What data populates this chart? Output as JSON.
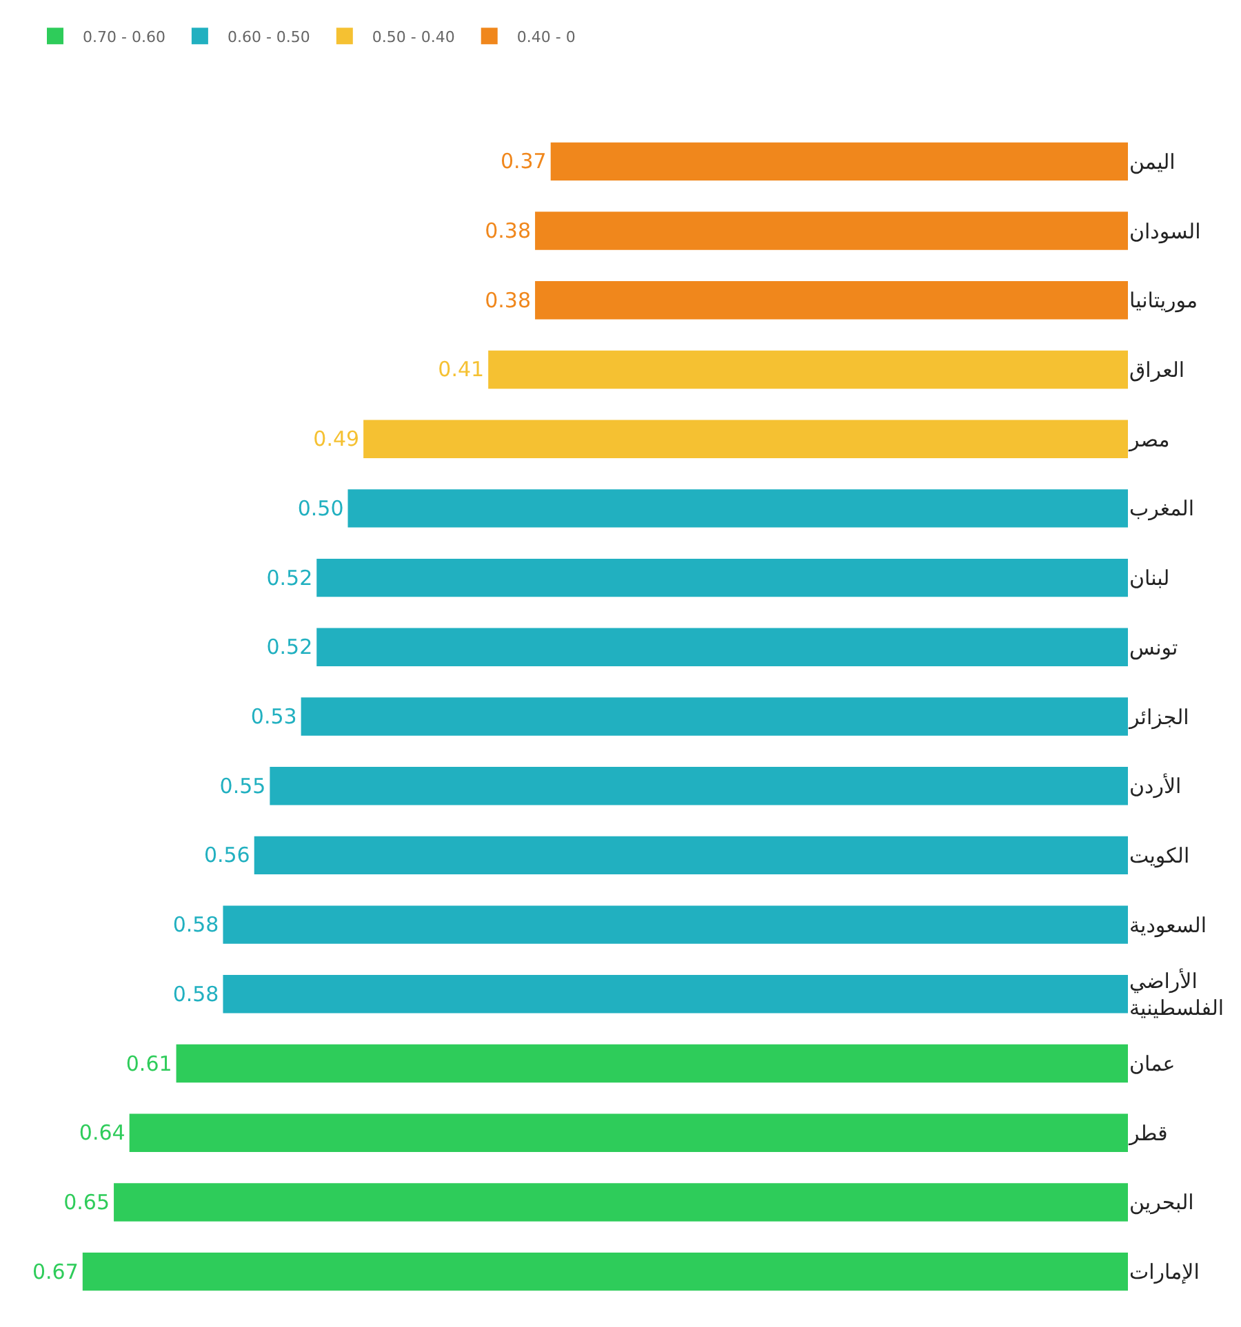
{
  "chart_data": {
    "type": "bar",
    "orientation": "horizontal",
    "stacked": true,
    "legend": "top left",
    "tick_labels": "y",
    "categories": [
      "اليمن",
      "السودان",
      "موريتانيا",
      "العراق",
      "مصر",
      "المغرب",
      "لبنان",
      "تونس",
      "الجزائر",
      "الأردن",
      "الكويت",
      "السعودية",
      "الأراضي الفلسطينية",
      "عمان",
      "قطر",
      "البحرين",
      "الإمارات"
    ],
    "series": [
      {
        "name": "0.70 - 0.60",
        "color": "#2ecc5a",
        "values": [
          null,
          null,
          null,
          null,
          null,
          null,
          null,
          null,
          null,
          null,
          null,
          null,
          null,
          0.61,
          0.64,
          0.65,
          0.67
        ],
        "value_labels": [
          null,
          null,
          null,
          null,
          null,
          null,
          null,
          null,
          null,
          null,
          null,
          null,
          null,
          "0.61",
          "0.64",
          "0.65",
          "0.67"
        ]
      },
      {
        "name": "0.60 - 0.50",
        "color": "#21b0c0",
        "values": [
          null,
          null,
          null,
          null,
          null,
          0.5,
          0.52,
          0.52,
          0.53,
          0.55,
          0.56,
          0.58,
          0.58,
          null,
          null,
          null,
          null
        ],
        "value_labels": [
          null,
          null,
          null,
          null,
          null,
          "0.50",
          "0.52",
          "0.52",
          "0.53",
          "0.55",
          "0.56",
          "0.58",
          "0.58",
          null,
          null,
          null,
          null
        ]
      },
      {
        "name": "0.50 - 0.40",
        "color": "#f5c132",
        "values": [
          null,
          null,
          null,
          0.41,
          0.49,
          null,
          null,
          null,
          null,
          null,
          null,
          null,
          null,
          null,
          null,
          null,
          null
        ],
        "value_labels": [
          null,
          null,
          null,
          "0.41",
          "0.49",
          null,
          null,
          null,
          null,
          null,
          null,
          null,
          null,
          null,
          null,
          null,
          null
        ]
      },
      {
        "name": "0.40 - 0",
        "color": "#f0871c",
        "values": [
          0.37,
          0.38,
          0.38,
          null,
          null,
          null,
          null,
          null,
          null,
          null,
          null,
          null,
          null,
          null,
          null,
          null,
          null
        ],
        "value_labels": [
          "0.37",
          "0.38",
          "0.38",
          null,
          null,
          null,
          null,
          null,
          null,
          null,
          null,
          null,
          null,
          null,
          null,
          null,
          null
        ]
      }
    ]
  }
}
